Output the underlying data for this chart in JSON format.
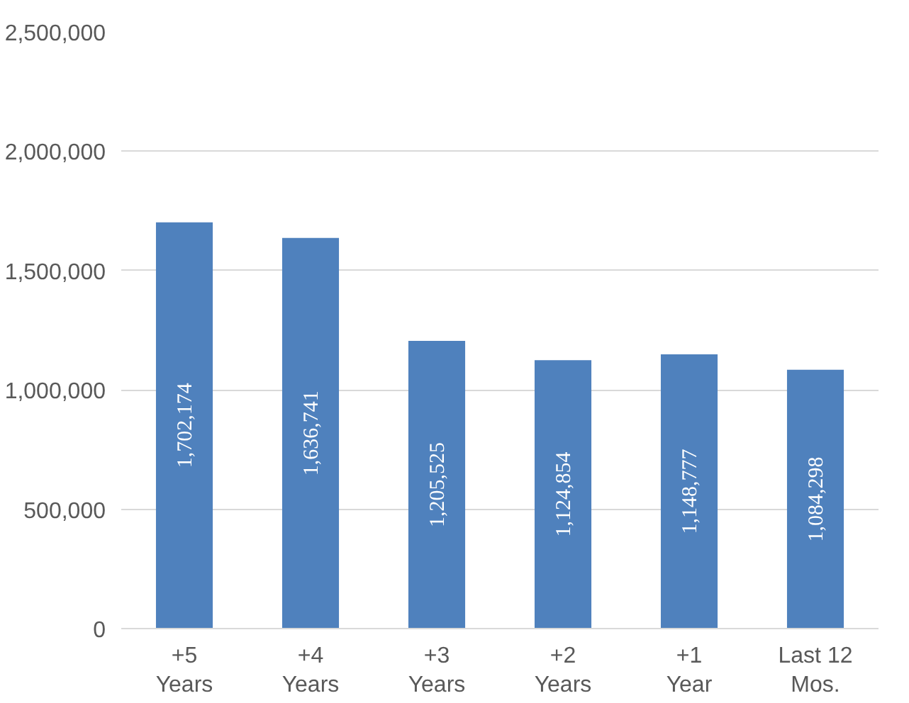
{
  "chart_data": {
    "type": "bar",
    "categories": [
      "+5 Years",
      "+4 Years",
      "+3 Years",
      "+2 Years",
      "+1 Year",
      "Last 12 Mos."
    ],
    "values": [
      1702174,
      1636741,
      1205525,
      1124854,
      1148777,
      1084298
    ],
    "color": "#4f81bd",
    "ylim": [
      0,
      2500000
    ],
    "yticks": [
      {
        "value": 0,
        "label": "0"
      },
      {
        "value": 500000,
        "label": "500,000"
      },
      {
        "value": 1000000,
        "label": "1,000,000"
      },
      {
        "value": 1500000,
        "label": "1,500,000"
      },
      {
        "value": 2000000,
        "label": "2,000,000"
      },
      {
        "value": 2500000,
        "label": "2,500,000"
      }
    ],
    "grid": "y",
    "value_labels": [
      "1,702,174",
      "1,636,741",
      "1,205,525",
      "1,124,854",
      "1,148,777",
      "1,084,298"
    ]
  }
}
